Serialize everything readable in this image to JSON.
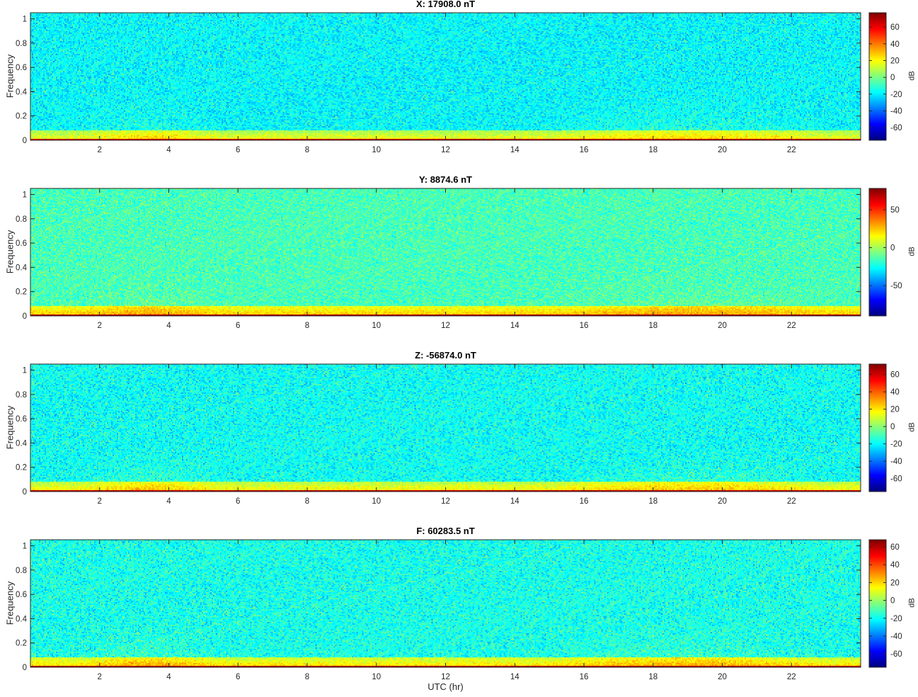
{
  "chart_data": [
    {
      "type": "heatmap",
      "title": "X: 17908.0 nT",
      "ylabel": "Frequency",
      "xlim": [
        0,
        24
      ],
      "ylim": [
        0,
        1.05
      ],
      "x_ticks": [
        2,
        4,
        6,
        8,
        10,
        12,
        14,
        16,
        18,
        20,
        22
      ],
      "y_ticks": [
        0,
        0.2,
        0.4,
        0.6,
        0.8,
        1
      ],
      "colorbar": {
        "label": "dB",
        "range": [
          -75,
          77
        ],
        "ticks": [
          -60,
          -40,
          -20,
          0,
          20,
          40,
          60
        ]
      },
      "colormap": "jet",
      "typical_levels_db": {
        "background": -18,
        "low_frequency_band": 20,
        "dc_line": 65
      },
      "enhanced_activity_hours": [
        [
          1.5,
          5.5
        ],
        [
          15,
          23
        ]
      ]
    },
    {
      "type": "heatmap",
      "title": "Y: 8874.6 nT",
      "ylabel": "Frequency",
      "xlim": [
        0,
        24
      ],
      "ylim": [
        0,
        1.05
      ],
      "x_ticks": [
        2,
        4,
        6,
        8,
        10,
        12,
        14,
        16,
        18,
        20,
        22
      ],
      "y_ticks": [
        0,
        0.2,
        0.4,
        0.6,
        0.8,
        1
      ],
      "colorbar": {
        "label": "dB",
        "range": [
          -90,
          78
        ],
        "ticks": [
          -50,
          0,
          50
        ]
      },
      "colormap": "jet",
      "typical_levels_db": {
        "background": -15,
        "low_frequency_band": 25,
        "dc_line": 70
      },
      "enhanced_activity_hours": [
        [
          1.5,
          5.5
        ],
        [
          15,
          23
        ]
      ]
    },
    {
      "type": "heatmap",
      "title": "Z: -56874.0 nT",
      "ylabel": "Frequency",
      "xlim": [
        0,
        24
      ],
      "ylim": [
        0,
        1.05
      ],
      "x_ticks": [
        2,
        4,
        6,
        8,
        10,
        12,
        14,
        16,
        18,
        20,
        22
      ],
      "y_ticks": [
        0,
        0.2,
        0.4,
        0.6,
        0.8,
        1
      ],
      "colorbar": {
        "label": "dB",
        "range": [
          -75,
          72
        ],
        "ticks": [
          -60,
          -40,
          -20,
          0,
          20,
          40,
          60
        ]
      },
      "colormap": "jet",
      "typical_levels_db": {
        "background": -18,
        "low_frequency_band": 20,
        "dc_line": 62
      },
      "enhanced_activity_hours": [
        [
          1.5,
          5.5
        ],
        [
          15,
          23
        ]
      ]
    },
    {
      "type": "heatmap",
      "title": "F: 60283.5 nT",
      "ylabel": "Frequency",
      "xlabel": "UTC (hr)",
      "xlim": [
        0,
        24
      ],
      "ylim": [
        0,
        1.05
      ],
      "x_ticks": [
        2,
        4,
        6,
        8,
        10,
        12,
        14,
        16,
        18,
        20,
        22
      ],
      "y_ticks": [
        0,
        0.2,
        0.4,
        0.6,
        0.8,
        1
      ],
      "colorbar": {
        "label": "dB",
        "range": [
          -75,
          68
        ],
        "ticks": [
          -60,
          -40,
          -20,
          0,
          20,
          40,
          60
        ]
      },
      "colormap": "jet",
      "typical_levels_db": {
        "background": -18,
        "low_frequency_band": 20,
        "dc_line": 60
      },
      "enhanced_activity_hours": [
        [
          1.5,
          5.5
        ],
        [
          15,
          23
        ]
      ]
    }
  ],
  "figure": {
    "xlabel": "UTC (hr)"
  }
}
